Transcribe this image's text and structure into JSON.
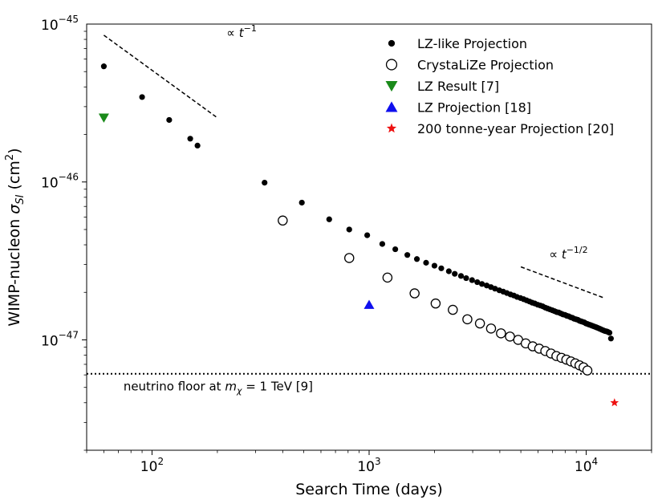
{
  "chart_data": {
    "type": "scatter",
    "xscale": "log",
    "yscale": "log",
    "xlabel": "Search Time   (days)",
    "ylabel_prefix": "WIMP-nucleon  ",
    "ylabel_symbol": "σ",
    "ylabel_sub": "SI",
    "ylabel_unit_open": "  (cm",
    "ylabel_unit_sup": "2",
    "ylabel_unit_close": ")",
    "xlim": [
      50,
      20000
    ],
    "ylim": [
      2e-48,
      1e-45
    ],
    "xticks": [
      {
        "value": 100,
        "base": "10",
        "exp": "2"
      },
      {
        "value": 1000,
        "base": "10",
        "exp": "3"
      },
      {
        "value": 10000,
        "base": "10",
        "exp": "4"
      }
    ],
    "yticks": [
      {
        "value": 1e-47,
        "base": "10",
        "exp": "−47"
      },
      {
        "value": 1e-46,
        "base": "10",
        "exp": "−46"
      },
      {
        "value": 1e-45,
        "base": "10",
        "exp": "−45"
      }
    ],
    "series": [
      {
        "name": "LZ-like Projection",
        "marker": "dot",
        "color": "#000000",
        "x": [
          60,
          90,
          120,
          150,
          162,
          330,
          490,
          655,
          810,
          980,
          1150,
          1320,
          1500,
          1660,
          1830,
          2000,
          2150,
          2330,
          2480,
          2650,
          2800,
          2980,
          3150,
          3310,
          3480,
          3640,
          3800,
          3980,
          4150,
          4310,
          4480,
          4640,
          4800,
          4980,
          5150,
          5310,
          5480,
          5640,
          5800,
          5980,
          6150,
          6310,
          6480,
          6640,
          6800,
          6980,
          7150,
          7310,
          7480,
          7640,
          7800,
          7980,
          8150,
          8310,
          8480,
          8640,
          8800,
          8980,
          9150,
          9310,
          9480,
          9640,
          9800,
          9980,
          10150,
          10310,
          10480,
          10640,
          10800,
          10980,
          11150,
          11310,
          11480,
          11640,
          11800,
          11980,
          12150,
          12310,
          12480,
          12640,
          12800,
          13000
        ],
        "y": [
          5.4e-46,
          3.45e-46,
          2.47e-46,
          1.88e-46,
          1.7e-46,
          9.9e-47,
          7.4e-47,
          5.8e-47,
          5e-47,
          4.6e-47,
          4.05e-47,
          3.75e-47,
          3.45e-47,
          3.25e-47,
          3.08e-47,
          2.95e-47,
          2.84e-47,
          2.72e-47,
          2.62e-47,
          2.54e-47,
          2.46e-47,
          2.39e-47,
          2.32e-47,
          2.26e-47,
          2.21e-47,
          2.16e-47,
          2.11e-47,
          2.06e-47,
          2.02e-47,
          1.98e-47,
          1.94e-47,
          1.91e-47,
          1.87e-47,
          1.84e-47,
          1.81e-47,
          1.78e-47,
          1.75e-47,
          1.72e-47,
          1.7e-47,
          1.67e-47,
          1.65e-47,
          1.63e-47,
          1.6e-47,
          1.58e-47,
          1.56e-47,
          1.54e-47,
          1.52e-47,
          1.5e-47,
          1.49e-47,
          1.47e-47,
          1.45e-47,
          1.44e-47,
          1.42e-47,
          1.41e-47,
          1.39e-47,
          1.38e-47,
          1.36e-47,
          1.35e-47,
          1.34e-47,
          1.32e-47,
          1.31e-47,
          1.3e-47,
          1.29e-47,
          1.27e-47,
          1.26e-47,
          1.25e-47,
          1.24e-47,
          1.23e-47,
          1.22e-47,
          1.21e-47,
          1.2e-47,
          1.19e-47,
          1.18e-47,
          1.17e-47,
          1.16e-47,
          1.15e-47,
          1.14e-47,
          1.135e-47,
          1.13e-47,
          1.12e-47,
          1.11e-47,
          1.02e-47
        ]
      },
      {
        "name": "CrystaLiZe Projection",
        "marker": "open-circle",
        "color": "#000000",
        "x": [
          400,
          810,
          1215,
          1620,
          2025,
          2430,
          2835,
          3240,
          3645,
          4050,
          4455,
          4860,
          5265,
          5670,
          6075,
          6480,
          6885,
          7290,
          7695,
          8100,
          8505,
          8910,
          9315,
          9720,
          10125
        ],
        "y": [
          5.7e-47,
          3.3e-47,
          2.48e-47,
          1.97e-47,
          1.7e-47,
          1.55e-47,
          1.35e-47,
          1.27e-47,
          1.18e-47,
          1.1e-47,
          1.05e-47,
          1e-47,
          9.5e-48,
          9.1e-48,
          8.8e-48,
          8.5e-48,
          8.2e-48,
          7.9e-48,
          7.7e-48,
          7.5e-48,
          7.3e-48,
          7.1e-48,
          6.9e-48,
          6.7e-48,
          6.4e-48
        ]
      },
      {
        "name": "LZ Result [7]",
        "marker": "triangle-down",
        "color": "#1a8a1a",
        "x": [
          60
        ],
        "y": [
          2.55e-46
        ]
      },
      {
        "name": "LZ Projection [18]",
        "marker": "triangle-up",
        "color": "#1010ee",
        "x": [
          1000
        ],
        "y": [
          1.67e-47
        ]
      },
      {
        "name": "200 tonne-year Projection [20]",
        "marker": "star",
        "color": "#ee1111",
        "x": [
          13500
        ],
        "y": [
          4e-48
        ]
      }
    ],
    "reference_lines": [
      {
        "name": "t^-1 guide",
        "x": [
          60,
          200
        ],
        "y": [
          8.5e-46,
          2.55e-46
        ]
      },
      {
        "name": "t^-1/2 guide",
        "x": [
          5000,
          12000
        ],
        "y": [
          2.9e-47,
          1.85e-47
        ]
      }
    ],
    "neutrino_floor": {
      "y": 6.1e-48
    },
    "annotations": {
      "t_inv": {
        "prefix": "∝ ",
        "var": "t",
        "sup": "−1",
        "anchor_x": 130,
        "anchor_y": 7.8e-46
      },
      "t_inv_sqrt": {
        "prefix": "∝ ",
        "var": "t",
        "sup": "−1/2",
        "anchor_x": 8000,
        "anchor_y": 3.1e-47
      },
      "floor_label": {
        "before": "neutrino floor at ",
        "var": "m",
        "sub": "χ",
        "after": " = 1 TeV [9]",
        "anchor_x": 65,
        "anchor_y": 4.95e-48
      }
    },
    "legend": {
      "position": "top-right"
    }
  }
}
